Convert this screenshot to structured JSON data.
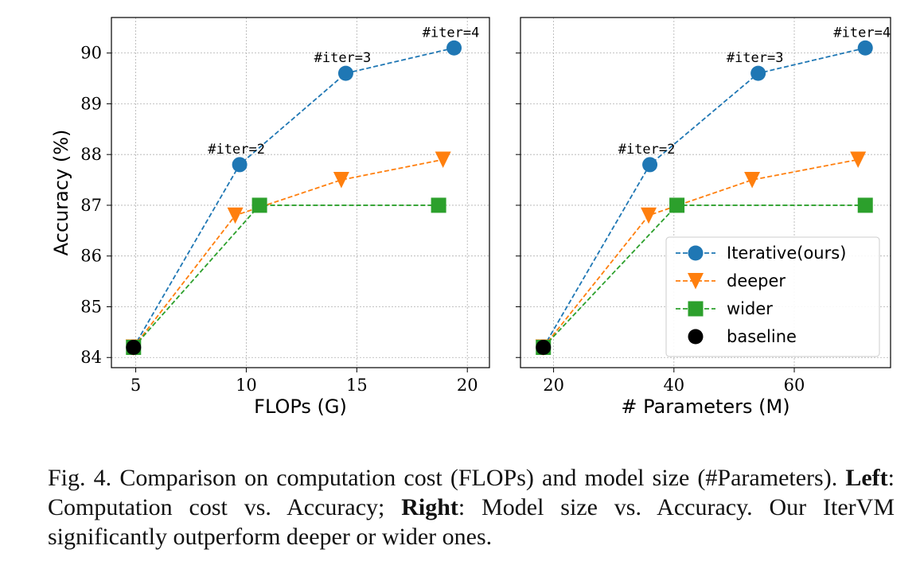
{
  "series_styles": [
    {
      "key": "iterative",
      "color": "#1f77b4",
      "marker": "circle"
    },
    {
      "key": "deeper",
      "color": "#ff7f0e",
      "marker": "triangle-down"
    },
    {
      "key": "wider",
      "color": "#2ca02c",
      "marker": "square"
    },
    {
      "key": "baseline",
      "color": "#000000",
      "marker": "circle"
    }
  ],
  "chart_data": [
    {
      "type": "line",
      "xlabel": "FLOPs (G)",
      "ylabel": "Accuracy (%)",
      "xlim": [
        3.9,
        21
      ],
      "ylim": [
        83.8,
        90.7
      ],
      "xticks": [
        5,
        10,
        15,
        20
      ],
      "yticks": [
        84,
        85,
        86,
        87,
        88,
        89,
        90
      ],
      "grid": true,
      "series": [
        {
          "name": "Iterative(ours)",
          "style": "iterative",
          "x": [
            4.9,
            9.7,
            14.5,
            19.4
          ],
          "y": [
            84.2,
            87.8,
            89.6,
            90.1
          ]
        },
        {
          "name": "deeper",
          "style": "deeper",
          "x": [
            4.9,
            9.5,
            14.3,
            18.9
          ],
          "y": [
            84.2,
            86.8,
            87.5,
            87.9
          ]
        },
        {
          "name": "wider",
          "style": "wider",
          "x": [
            4.9,
            10.6,
            18.7
          ],
          "y": [
            84.2,
            87.0,
            87.0
          ]
        },
        {
          "name": "baseline",
          "style": "baseline",
          "x": [
            4.9
          ],
          "y": [
            84.2
          ]
        }
      ],
      "annotations": [
        {
          "text": "#iter=2",
          "x": 9.7,
          "y": 87.8
        },
        {
          "text": "#iter=3",
          "x": 14.5,
          "y": 89.6
        },
        {
          "text": "#iter=4",
          "x": 19.4,
          "y": 90.1
        }
      ],
      "legend": null
    },
    {
      "type": "line",
      "xlabel": "# Parameters (M)",
      "ylabel": "",
      "xlim": [
        14.5,
        76
      ],
      "ylim": [
        83.8,
        90.7
      ],
      "xticks": [
        20,
        40,
        60
      ],
      "yticks": [
        84,
        85,
        86,
        87,
        88,
        89,
        90
      ],
      "grid": true,
      "series": [
        {
          "name": "Iterative(ours)",
          "style": "iterative",
          "x": [
            18.3,
            36,
            54,
            71.8
          ],
          "y": [
            84.2,
            87.8,
            89.6,
            90.1
          ]
        },
        {
          "name": "deeper",
          "style": "deeper",
          "x": [
            18.3,
            35.8,
            53,
            70.6
          ],
          "y": [
            84.2,
            86.8,
            87.5,
            87.9
          ]
        },
        {
          "name": "wider",
          "style": "wider",
          "x": [
            18.3,
            40.5,
            71.8
          ],
          "y": [
            84.2,
            87.0,
            87.0
          ]
        },
        {
          "name": "baseline",
          "style": "baseline",
          "x": [
            18.3
          ],
          "y": [
            84.2
          ]
        }
      ],
      "annotations": [
        {
          "text": "#iter=2",
          "x": 36,
          "y": 87.8
        },
        {
          "text": "#iter=3",
          "x": 54,
          "y": 89.6
        },
        {
          "text": "#iter=4",
          "x": 71.8,
          "y": 90.1
        }
      ],
      "legend": "lower-right"
    }
  ],
  "caption": {
    "prefix": "Fig. 4.  Comparison on computation cost (FLOPs) and model size (#Parameters). ",
    "left_label": "Left",
    "left_text": ": Computation cost vs. Accuracy; ",
    "right_label": "Right",
    "right_text": ": Model size vs. Accuracy. Our IterVM significantly outperform deeper or wider ones."
  }
}
